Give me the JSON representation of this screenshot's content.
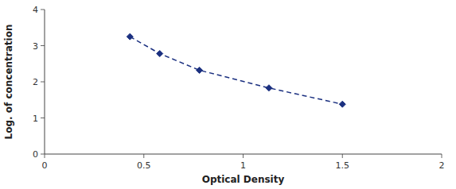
{
  "chart_data": {
    "type": "line",
    "x": [
      0.43,
      0.58,
      0.78,
      1.13,
      1.5
    ],
    "values": [
      3.25,
      2.78,
      2.32,
      1.83,
      1.38
    ],
    "xlabel": "Optical Density",
    "ylabel": "Log. of concentration",
    "xlim": [
      0,
      2
    ],
    "ylim": [
      0,
      4
    ],
    "xticks": [
      0,
      0.5,
      1,
      1.5,
      2
    ],
    "yticks": [
      0,
      1,
      2,
      3,
      4
    ],
    "color": "#1B3080",
    "marker": "diamond",
    "line_style": "dashed",
    "grid": false
  }
}
